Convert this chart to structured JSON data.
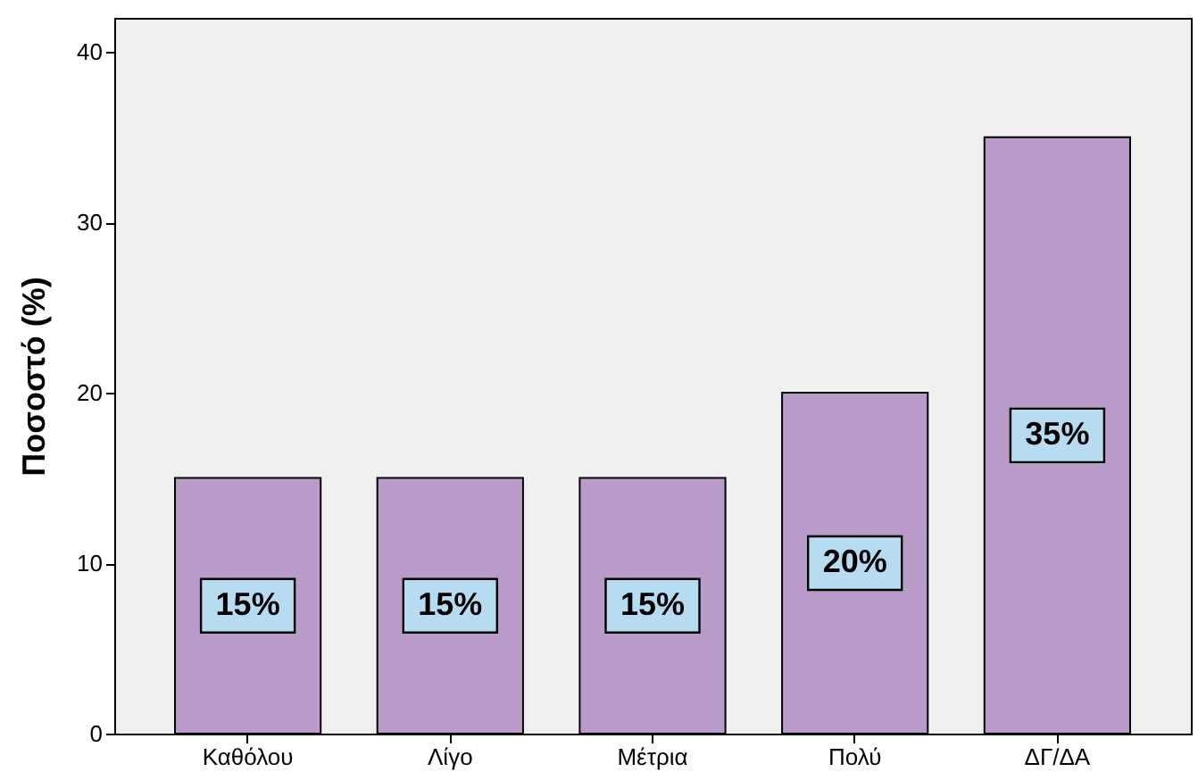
{
  "chart_data": {
    "type": "bar",
    "ylabel": "Ποσοστό (%)",
    "categories": [
      "Καθόλου",
      "Λίγο",
      "Μέτρια",
      "Πολύ",
      "ΔΓ/ΔΑ"
    ],
    "values": [
      15,
      15,
      15,
      20,
      35
    ],
    "value_labels": [
      "15%",
      "15%",
      "15%",
      "20%",
      "35%"
    ],
    "color": "#b89bc9",
    "ylim": [
      0,
      42
    ],
    "yticks": [
      0,
      10,
      20,
      30,
      40
    ],
    "grid": false
  }
}
